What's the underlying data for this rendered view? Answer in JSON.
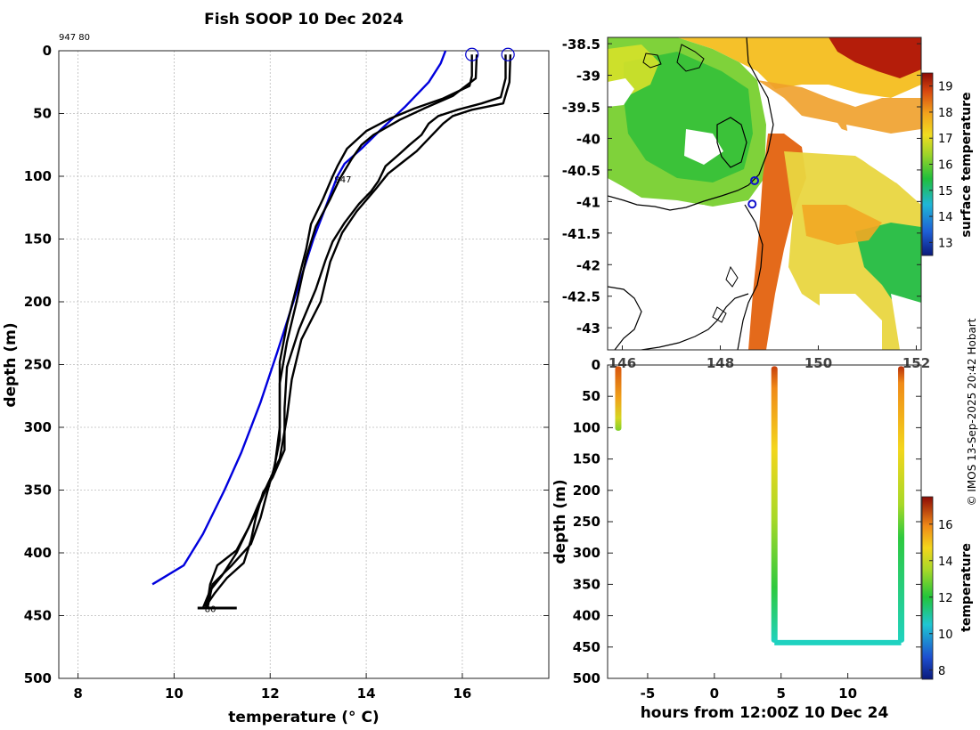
{
  "title": "Fish SOOP 10 Dec 2024",
  "credit": "© IMOS 13-Sep-2025 20:42 Hobart",
  "chart_data": [
    {
      "type": "line",
      "name": "temperature-depth-profiles",
      "xlabel": "temperature (° C)",
      "ylabel": "depth (m)",
      "xlim": [
        7.6,
        17.8
      ],
      "ylim": [
        500,
        0
      ],
      "xticks": [
        8,
        10,
        12,
        14,
        16
      ],
      "yticks": [
        0,
        50,
        100,
        150,
        200,
        250,
        300,
        350,
        400,
        450,
        500
      ],
      "grid": true,
      "top_annotation": "947 80",
      "series": [
        {
          "name": "947",
          "color": "#0000dd",
          "points": [
            [
              15.65,
              0
            ],
            [
              15.55,
              10
            ],
            [
              15.3,
              25
            ],
            [
              14.8,
              45
            ],
            [
              14.3,
              63
            ],
            [
              13.9,
              78
            ],
            [
              13.55,
              90
            ],
            [
              13.4,
              100
            ],
            [
              13.1,
              130
            ],
            [
              12.9,
              150
            ],
            [
              12.65,
              180
            ],
            [
              12.4,
              210
            ],
            [
              12.15,
              240
            ],
            [
              11.8,
              280
            ],
            [
              11.4,
              320
            ],
            [
              11.05,
              350
            ],
            [
              10.6,
              385
            ],
            [
              10.2,
              410
            ],
            [
              9.55,
              425
            ]
          ],
          "annotations": [
            {
              "x": 13.3,
              "y": 103,
              "text": "947"
            }
          ]
        },
        {
          "name": "80 (cast 1)",
          "color": "#000000",
          "points": [
            [
              16.2,
              3
            ],
            [
              16.2,
              20
            ],
            [
              16.15,
              28
            ],
            [
              15.6,
              38
            ],
            [
              15.0,
              46
            ],
            [
              14.5,
              54
            ],
            [
              14.0,
              64
            ],
            [
              13.6,
              78
            ],
            [
              13.4,
              92
            ],
            [
              13.3,
              100
            ],
            [
              13.1,
              118
            ],
            [
              12.85,
              138
            ],
            [
              12.75,
              158
            ],
            [
              12.55,
              188
            ],
            [
              12.35,
              218
            ],
            [
              12.2,
              248
            ],
            [
              12.2,
              280
            ],
            [
              12.2,
              310
            ],
            [
              12.05,
              338
            ],
            [
              11.85,
              355
            ],
            [
              11.7,
              368
            ],
            [
              11.55,
              380
            ],
            [
              11.3,
              398
            ],
            [
              10.9,
              410
            ],
            [
              10.75,
              425
            ],
            [
              10.7,
              438
            ],
            [
              10.65,
              442
            ]
          ]
        },
        {
          "name": "80 (cast 2)",
          "color": "#000000",
          "points": [
            [
              16.3,
              3
            ],
            [
              16.28,
              22
            ],
            [
              15.8,
              36
            ],
            [
              15.2,
              46
            ],
            [
              14.7,
              55
            ],
            [
              14.15,
              67
            ],
            [
              13.9,
              75
            ],
            [
              13.7,
              86
            ],
            [
              13.45,
              102
            ],
            [
              13.25,
              118
            ],
            [
              12.95,
              140
            ],
            [
              12.75,
              165
            ],
            [
              12.55,
              200
            ],
            [
              12.35,
              232
            ],
            [
              12.2,
              265
            ],
            [
              12.2,
              300
            ],
            [
              12.1,
              330
            ],
            [
              11.95,
              350
            ],
            [
              11.8,
              372
            ],
            [
              11.6,
              393
            ],
            [
              11.2,
              410
            ],
            [
              10.8,
              425
            ],
            [
              10.7,
              443
            ]
          ]
        },
        {
          "name": "80 (cast 3)",
          "color": "#000000",
          "points": [
            [
              16.9,
              3
            ],
            [
              16.9,
              22
            ],
            [
              16.8,
              37
            ],
            [
              16.4,
              42
            ],
            [
              15.9,
              47
            ],
            [
              15.5,
              52
            ],
            [
              15.3,
              58
            ],
            [
              15.15,
              67
            ],
            [
              14.9,
              75
            ],
            [
              14.7,
              82
            ],
            [
              14.4,
              92
            ],
            [
              14.25,
              104
            ],
            [
              14.1,
              112
            ],
            [
              13.85,
              122
            ],
            [
              13.55,
              137
            ],
            [
              13.3,
              152
            ],
            [
              13.15,
              167
            ],
            [
              12.95,
              190
            ],
            [
              12.6,
              222
            ],
            [
              12.35,
              252
            ],
            [
              12.3,
              285
            ],
            [
              12.3,
              318
            ],
            [
              12.05,
              340
            ],
            [
              11.85,
              352
            ],
            [
              11.7,
              372
            ],
            [
              11.6,
              390
            ],
            [
              11.45,
              408
            ],
            [
              11.1,
              420
            ],
            [
              10.85,
              432
            ],
            [
              10.65,
              443
            ]
          ]
        },
        {
          "name": "80 (cast 4)",
          "color": "#000000",
          "points": [
            [
              17.0,
              3
            ],
            [
              16.98,
              25
            ],
            [
              16.85,
              42
            ],
            [
              16.2,
              47
            ],
            [
              15.8,
              52
            ],
            [
              15.6,
              58
            ],
            [
              15.4,
              66
            ],
            [
              15.05,
              80
            ],
            [
              14.75,
              89
            ],
            [
              14.45,
              98
            ],
            [
              14.2,
              110
            ],
            [
              13.8,
              128
            ],
            [
              13.5,
              145
            ],
            [
              13.25,
              168
            ],
            [
              13.05,
              200
            ],
            [
              12.65,
              230
            ],
            [
              12.45,
              262
            ],
            [
              12.35,
              292
            ],
            [
              12.2,
              325
            ],
            [
              11.95,
              345
            ],
            [
              11.75,
              362
            ],
            [
              11.55,
              380
            ],
            [
              11.3,
              400
            ],
            [
              11.0,
              418
            ],
            [
              10.75,
              430
            ],
            [
              10.6,
              444
            ]
          ],
          "annotations": [
            {
              "x": 10.6,
              "y": 445,
              "text": "80"
            }
          ]
        }
      ],
      "surface_markers": [
        {
          "x": 16.2,
          "y": 3
        },
        {
          "x": 16.95,
          "y": 3
        }
      ]
    },
    {
      "type": "heatmap",
      "name": "surface-temperature-map",
      "colorbar_label": "surface temperature",
      "colorbar_range": [
        12.5,
        19.5
      ],
      "colorbar_ticks": [
        13,
        14,
        15,
        16,
        17,
        18,
        19
      ],
      "lat_ticks": [
        "-38.5",
        "-39",
        "-39.5",
        "-40",
        "-40.5",
        "-41",
        "-41.5",
        "-42",
        "-42.5",
        "-43"
      ],
      "lon_ticks": [
        "146",
        "148",
        "150",
        "152"
      ],
      "track_points": [
        {
          "lon": 148.7,
          "lat": -40.67
        },
        {
          "lon": 148.65,
          "lat": -41.04
        }
      ]
    },
    {
      "type": "scatter",
      "name": "depth-time-section",
      "xlabel": "hours from 12:00Z 10 Dec 24",
      "ylabel": "depth (m)",
      "xlim": [
        -8,
        15.5
      ],
      "ylim": [
        500,
        0
      ],
      "xticks": [
        -5,
        0,
        5,
        10
      ],
      "yticks": [
        0,
        50,
        100,
        150,
        200,
        250,
        300,
        350,
        400,
        450,
        500
      ],
      "colorbar_label": "temperature",
      "colorbar_range": [
        7.5,
        17.5
      ],
      "colorbar_ticks": [
        8,
        10,
        12,
        14,
        16
      ],
      "segments": [
        {
          "name": "drop 1",
          "from": {
            "x": -7.2,
            "y": 2
          },
          "to": {
            "x": -7.2,
            "y": 105
          },
          "temp_from": 17.0,
          "temp_to": 14.0
        },
        {
          "name": "descent",
          "from": {
            "x": 4.5,
            "y": 2
          },
          "to": {
            "x": 4.5,
            "y": 443
          },
          "temp_from": 17.0,
          "temp_to": 11.0
        },
        {
          "name": "bottom",
          "from": {
            "x": 4.5,
            "y": 443
          },
          "to": {
            "x": 14.0,
            "y": 443
          },
          "temp_from": 10.8,
          "temp_to": 10.8
        },
        {
          "name": "ascent",
          "from": {
            "x": 14.0,
            "y": 443
          },
          "to": {
            "x": 14.0,
            "y": 2
          },
          "temp_from": 11.0,
          "temp_to": 17.2
        }
      ]
    }
  ]
}
